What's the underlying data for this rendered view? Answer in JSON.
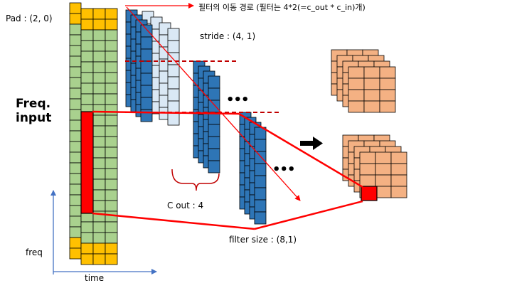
{
  "labels": {
    "pad": "Pad : (2, 0)",
    "filter_path": "필터의 이동 경로 (필터는 4*2(=c_out * c_in)개)",
    "stride": "stride : (4, 1)",
    "freq_input_line1": "Freq.",
    "freq_input_line2": "input",
    "c_out": "C out : 4",
    "filter_size": "filter size : (8,1)",
    "freq_axis": "freq",
    "time_axis": "time",
    "ellipsis_upper": "•••",
    "ellipsis_lower": "•••"
  },
  "colors": {
    "padding": "#ffc000",
    "input": "#a9d18e",
    "receptive_field": "#ff0000",
    "filter": "#2e75b6",
    "filter_shadow": "#dae8f5",
    "output": "#f4b183",
    "path_line": "#ff0000",
    "stride_dash": "#c00000",
    "axis": "#4472c4"
  }
}
